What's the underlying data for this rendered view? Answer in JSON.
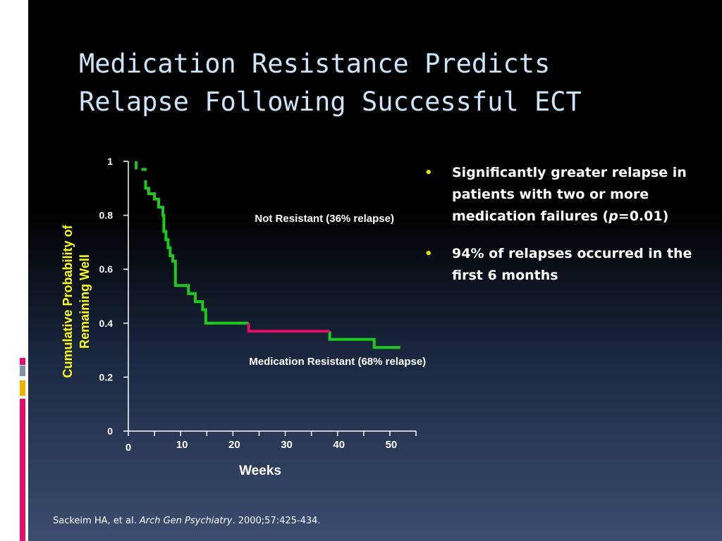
{
  "slide": {
    "title_lines": [
      "Medication Resistance Predicts",
      "Relapse Following Successful ECT"
    ],
    "bullets": [
      {
        "parts": [
          {
            "text": "Significantly greater relapse in patients with two or more medication failures (",
            "italic": false
          },
          {
            "text": "p",
            "italic": true
          },
          {
            "text": "=0.01)",
            "italic": false
          }
        ]
      },
      {
        "parts": [
          {
            "text": "94% of relapses occurred in the first 6 months",
            "italic": false
          }
        ]
      }
    ],
    "citation": {
      "authors": "Sackeim HA, et al. ",
      "journal": "Arch Gen Psychiatry",
      "details": ". 2000;57:425-434."
    },
    "colors": {
      "title": "#cbe6fb",
      "bullet_marker": "#e3dd00",
      "accent_pink": "#e0106a",
      "accent_gray": "#7f93a3",
      "accent_yellow": "#f2b200"
    }
  },
  "chart_data": {
    "type": "line",
    "xlabel": "Weeks",
    "ylabel_lines": [
      "Cumulative Probability of",
      "Remaining Well"
    ],
    "xlim": [
      0,
      55
    ],
    "ylim": [
      0,
      1
    ],
    "x_ticks": [
      0,
      10,
      20,
      30,
      40,
      50
    ],
    "x_minor_ticks": [
      5,
      15,
      25,
      35,
      45,
      55
    ],
    "y_ticks": [
      0,
      0.2,
      0.4,
      0.6,
      0.8,
      1
    ],
    "y_tick_labels": [
      "0",
      "0.2",
      "0.4",
      "0.6",
      "0.8",
      "1"
    ],
    "annotations": [
      {
        "text": "Not Resistant (36% relapse)",
        "x": 37.5,
        "y": 0.775
      },
      {
        "text": "Medication Resistant (68% relapse)",
        "x": 40,
        "y": 0.245
      }
    ],
    "series": [
      {
        "color": "#1ec81e",
        "style": "step",
        "segments": [
          [
            [
              1.5,
              1.0
            ],
            [
              1.5,
              0.97
            ]
          ],
          [
            [
              2.5,
              0.97
            ],
            [
              3.5,
              0.97
            ]
          ],
          [
            [
              3.3,
              0.93
            ],
            [
              3.3,
              0.9
            ],
            [
              3.9,
              0.9
            ],
            [
              3.9,
              0.88
            ],
            [
              5.0,
              0.88
            ],
            [
              5.0,
              0.86
            ],
            [
              5.8,
              0.86
            ],
            [
              5.8,
              0.83
            ],
            [
              6.6,
              0.83
            ],
            [
              6.6,
              0.8
            ],
            [
              6.8,
              0.8
            ],
            [
              6.8,
              0.74
            ],
            [
              7.2,
              0.74
            ],
            [
              7.2,
              0.71
            ],
            [
              7.6,
              0.71
            ],
            [
              7.6,
              0.68
            ],
            [
              8.0,
              0.68
            ],
            [
              8.0,
              0.65
            ],
            [
              8.5,
              0.65
            ],
            [
              8.5,
              0.63
            ],
            [
              9.0,
              0.63
            ],
            [
              9.0,
              0.54
            ],
            [
              11.5,
              0.54
            ],
            [
              11.5,
              0.51
            ],
            [
              12.8,
              0.51
            ],
            [
              12.8,
              0.48
            ],
            [
              14.2,
              0.48
            ],
            [
              14.2,
              0.45
            ],
            [
              14.8,
              0.45
            ],
            [
              14.8,
              0.4
            ],
            [
              23.0,
              0.4
            ]
          ],
          [
            [
              38.5,
              0.37
            ],
            [
              38.5,
              0.34
            ],
            [
              47.0,
              0.34
            ],
            [
              47.0,
              0.31
            ],
            [
              52.0,
              0.31
            ]
          ]
        ]
      },
      {
        "color": "#e0106a",
        "style": "step",
        "segments": [
          [
            [
              23.0,
              0.4
            ],
            [
              23.0,
              0.37
            ],
            [
              38.5,
              0.37
            ]
          ]
        ]
      }
    ]
  }
}
